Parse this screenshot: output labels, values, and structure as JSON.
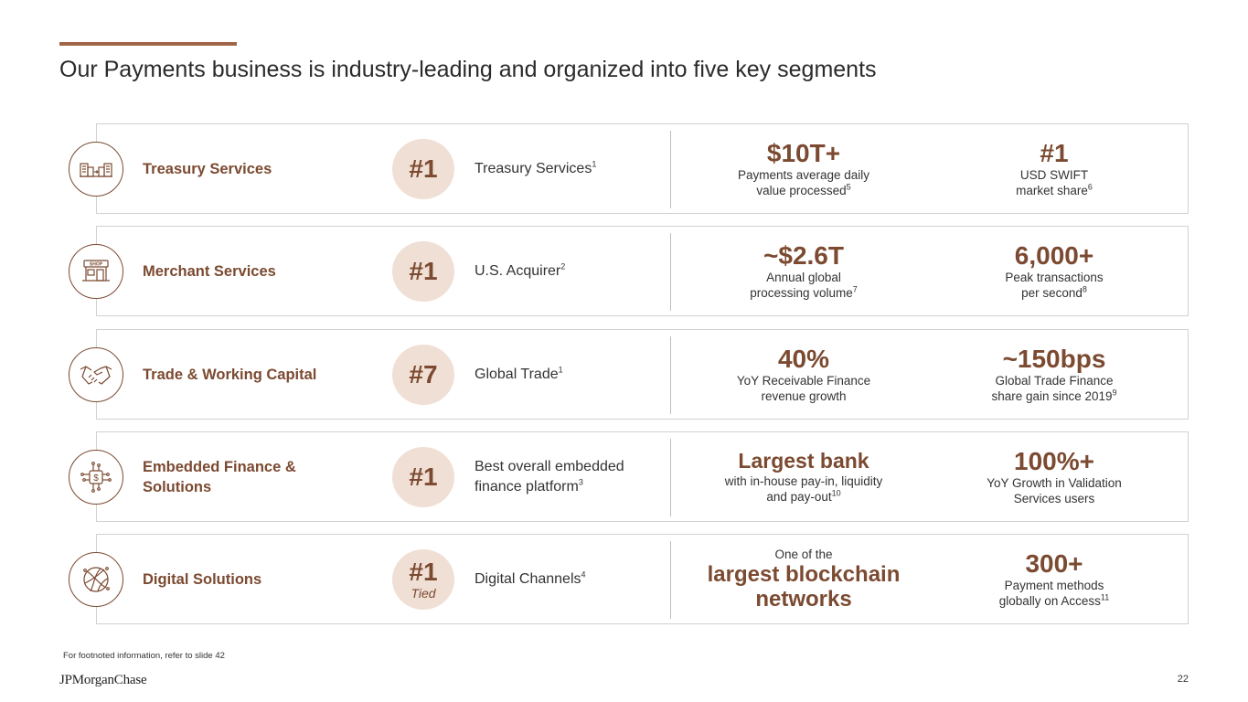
{
  "slide": {
    "title": "Our Payments business is industry-leading and organized into five key segments",
    "footnote": "For footnoted information, refer to slide 42",
    "logo": "JPMorganChase",
    "page_number": "22"
  },
  "segments": [
    {
      "name": "Treasury Services",
      "icon": "buildings-transfer-icon",
      "rank": "#1",
      "rank_sub": "",
      "rank_label": "Treasury Services",
      "rank_sup": "1",
      "stat_a": {
        "pre": "",
        "value": "$10T+",
        "desc": "Payments average daily value processed",
        "sup": "5"
      },
      "stat_b": {
        "pre": "",
        "value": "#1",
        "desc": "USD SWIFT market share",
        "sup": "6"
      }
    },
    {
      "name": "Merchant Services",
      "icon": "shop-icon",
      "shop_label": "SHOP",
      "rank": "#1",
      "rank_sub": "",
      "rank_label": "U.S. Acquirer",
      "rank_sup": "2",
      "stat_a": {
        "pre": "",
        "value": "~$2.6T",
        "desc": "Annual global processing volume",
        "sup": "7"
      },
      "stat_b": {
        "pre": "",
        "value": "6,000+",
        "desc": "Peak transactions per second",
        "sup": "8"
      }
    },
    {
      "name": "Trade & Working Capital",
      "icon": "handshake-icon",
      "rank": "#7",
      "rank_sub": "",
      "rank_label": "Global Trade",
      "rank_sup": "1",
      "stat_a": {
        "pre": "",
        "value": "40%",
        "desc": "YoY Receivable Finance revenue growth",
        "sup": ""
      },
      "stat_b": {
        "pre": "",
        "value": "~150bps",
        "desc": "Global Trade Finance share gain since 2019",
        "sup": "9"
      }
    },
    {
      "name": "Embedded Finance & Solutions",
      "icon": "dollar-circuit-icon",
      "rank": "#1",
      "rank_sub": "",
      "rank_label": "Best overall embedded finance platform",
      "rank_sup": "3",
      "stat_a": {
        "pre": "",
        "value": "Largest bank",
        "desc": "with in-house pay-in, liquidity and pay-out",
        "sup": "10"
      },
      "stat_b": {
        "pre": "",
        "value": "100%+",
        "desc": "YoY Growth in Validation Services users",
        "sup": ""
      }
    },
    {
      "name": "Digital Solutions",
      "icon": "globe-network-icon",
      "rank": "#1",
      "rank_sub": "Tied",
      "rank_label": "Digital Channels",
      "rank_sup": "4",
      "stat_a": {
        "pre": "One of the",
        "value": "largest blockchain networks",
        "desc": "",
        "sup": ""
      },
      "stat_b": {
        "pre": "",
        "value": "300+",
        "desc": "Payment methods globally on Access",
        "sup": "11"
      }
    }
  ],
  "colors": {
    "accent": "#7b4a31",
    "rank_circle": "#f0dfd4",
    "rule": "#a0664a"
  }
}
